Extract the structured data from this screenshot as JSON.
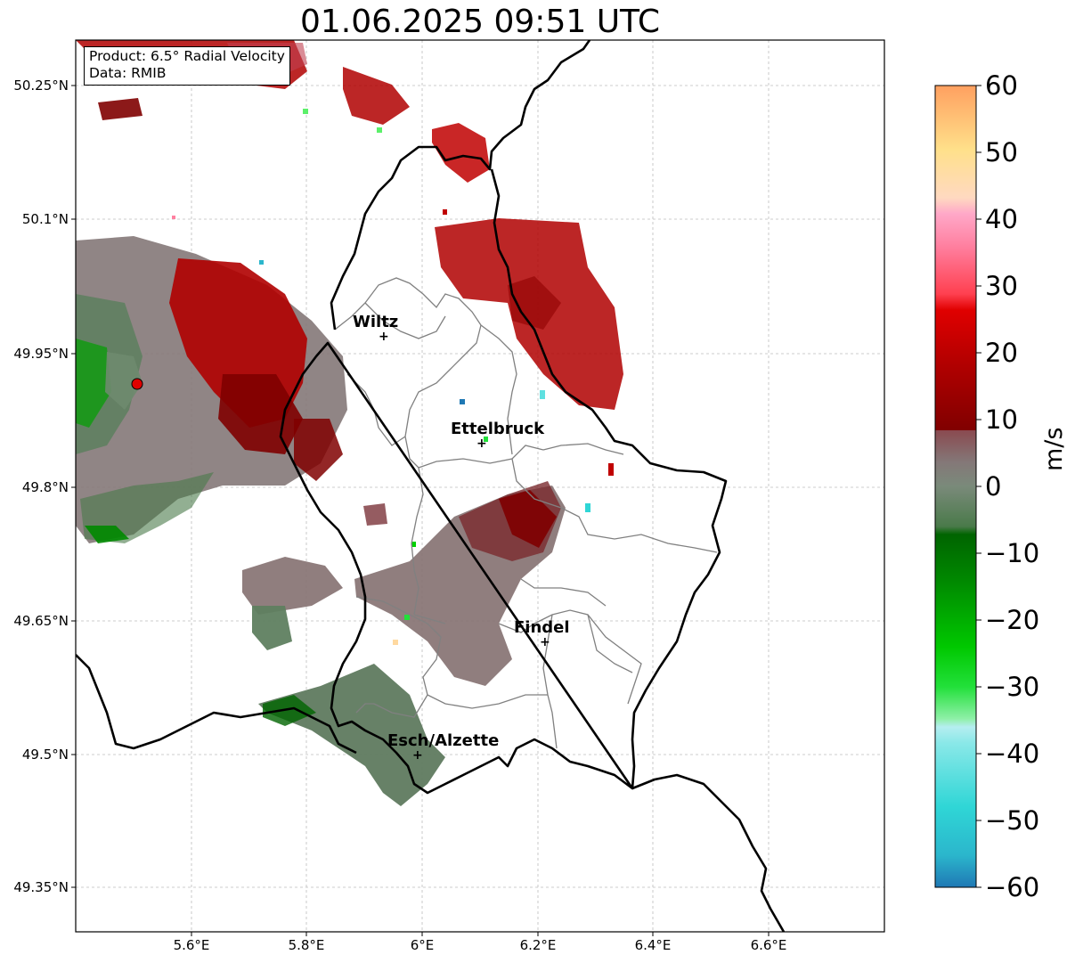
{
  "title": "01.06.2025 09:51 UTC",
  "info_box": {
    "product": "Product: 6.5° Radial Velocity",
    "source": "Data: RMIB"
  },
  "cities": [
    {
      "name": "Wiltz"
    },
    {
      "name": "Ettelbruck"
    },
    {
      "name": "Findel"
    },
    {
      "name": "Esch/Alzette"
    }
  ],
  "axes": {
    "lat_ticks": [
      "50.25°N",
      "50.1°N",
      "49.95°N",
      "49.8°N",
      "49.65°N",
      "49.5°N",
      "49.35°N"
    ],
    "lon_ticks": [
      "5.6°E",
      "5.8°E",
      "6°E",
      "6.2°E",
      "6.4°E",
      "6.6°E"
    ]
  },
  "colorbar": {
    "label": "m/s",
    "ticks": [
      "60",
      "50",
      "40",
      "30",
      "20",
      "10",
      "0",
      "−10",
      "−20",
      "−30",
      "−40",
      "−50",
      "−60"
    ],
    "range": [
      -60,
      60
    ],
    "colors": [
      "#1f78b4",
      "#2bb6cc",
      "#2fd6d6",
      "#5fe0e0",
      "#8ae8e8",
      "#b5eef0",
      "#8ff0a8",
      "#5cf06a",
      "#22e03a",
      "#00d100",
      "#00ad00",
      "#008a00",
      "#006400",
      "#4a7a4a",
      "#6e8a6e",
      "#847878",
      "#8a5a5e",
      "#7a2a2e",
      "#800000",
      "#a00000",
      "#c00000",
      "#dd0000",
      "#f50000",
      "#ff5060",
      "#ff80a0",
      "#ff9cc8",
      "#ffb0b8",
      "#ffd9a0",
      "#ffe08a",
      "#ffc080",
      "#ffa060"
    ]
  },
  "map": {
    "radar_site": {
      "label": "radar-site",
      "color": "#e00000"
    },
    "colors": {
      "border": "#000000",
      "canton": "#808080",
      "grid": "#bdbdbd"
    }
  }
}
